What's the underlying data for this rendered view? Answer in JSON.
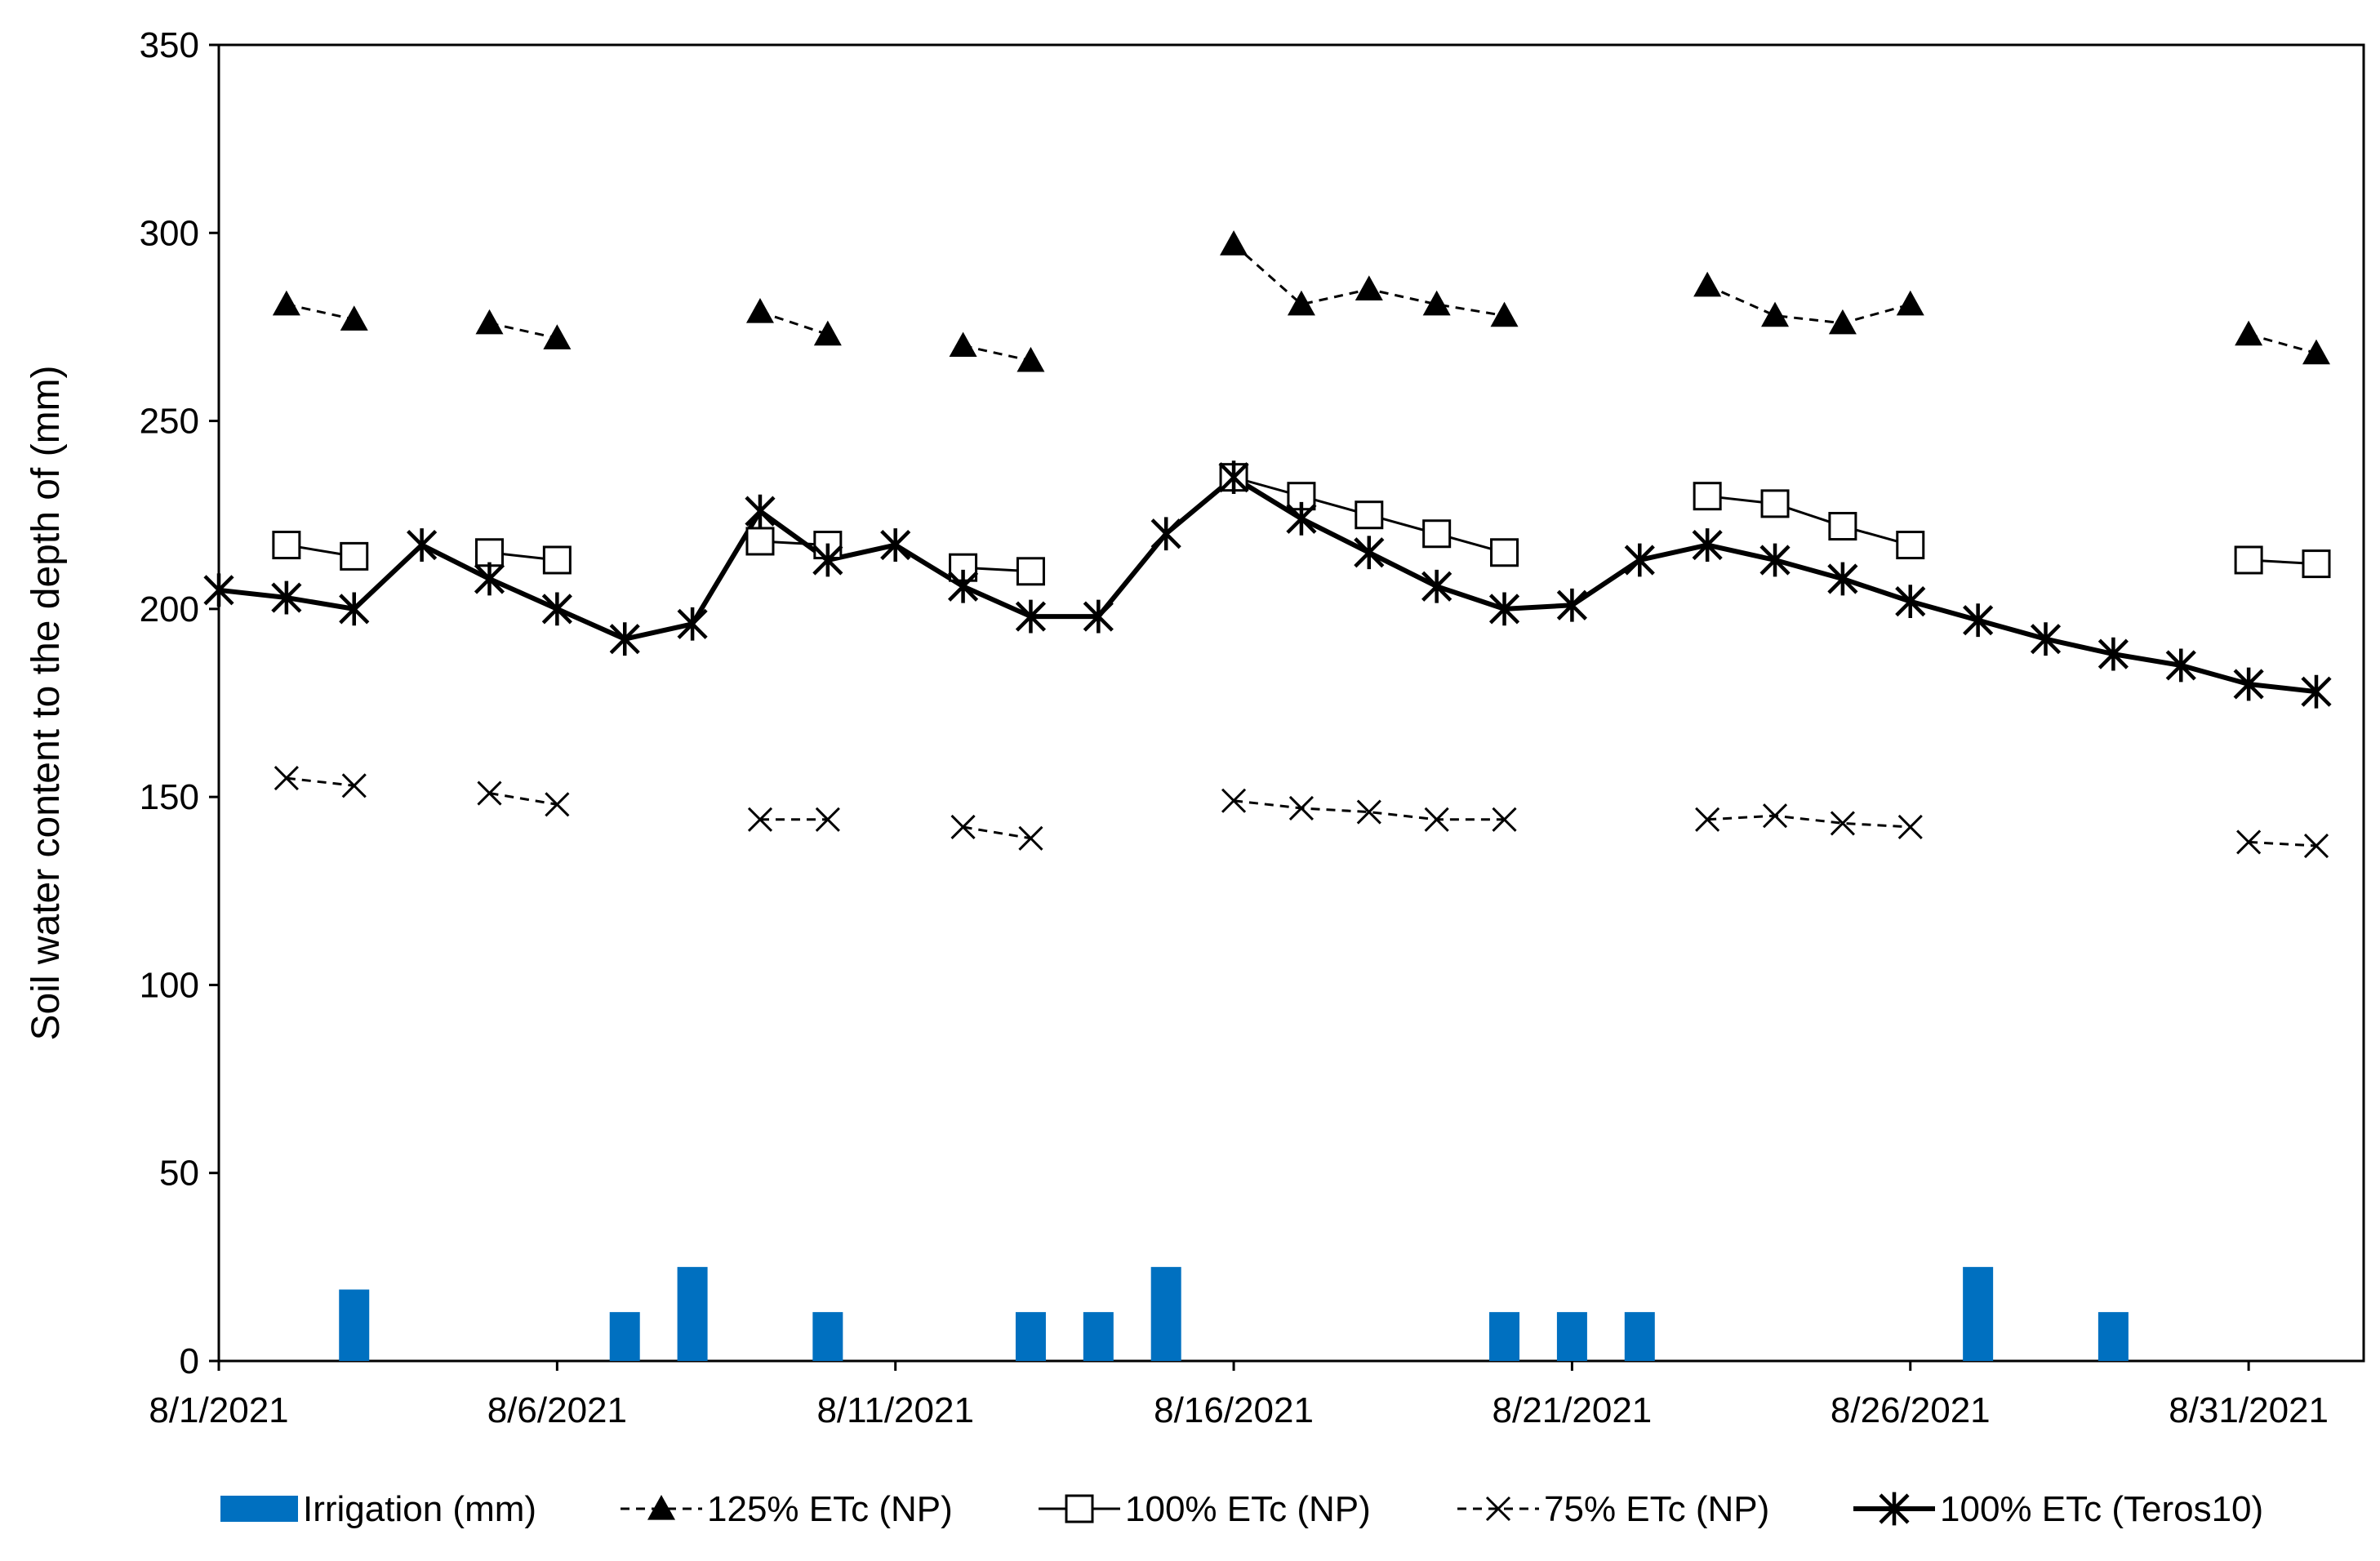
{
  "chart_data": {
    "type": "line",
    "title": "",
    "xlabel": "",
    "ylabel": "Soil water content to the depth of  (mm)",
    "ylim": [
      0,
      350
    ],
    "yticks": [
      0,
      50,
      100,
      150,
      200,
      250,
      300,
      350
    ],
    "xlim": [
      0,
      31.7
    ],
    "xticks": [
      {
        "day": 0,
        "label": "8/1/2021"
      },
      {
        "day": 5,
        "label": "8/6/2021"
      },
      {
        "day": 10,
        "label": "8/11/2021"
      },
      {
        "day": 15,
        "label": "8/16/2021"
      },
      {
        "day": 20,
        "label": "8/21/2021"
      },
      {
        "day": 25,
        "label": "8/26/2021"
      },
      {
        "day": 30,
        "label": "8/31/2021"
      }
    ],
    "grid": false,
    "legend_position": "bottom",
    "series": [
      {
        "name": "Irrigation (mm)",
        "kind": "bar",
        "color": "#0070C0",
        "points": [
          [
            2,
            19
          ],
          [
            6,
            13
          ],
          [
            7,
            25
          ],
          [
            9,
            13
          ],
          [
            12,
            13
          ],
          [
            13,
            13
          ],
          [
            14,
            25
          ],
          [
            19,
            13
          ],
          [
            20,
            13
          ],
          [
            21,
            13
          ],
          [
            26,
            25
          ],
          [
            28,
            13
          ]
        ]
      },
      {
        "name": "125% ETc (NP)",
        "kind": "line",
        "marker": "triangle",
        "dash": "dashed",
        "segments": [
          [
            [
              1,
              281
            ],
            [
              2,
              277
            ]
          ],
          [
            [
              4,
              276
            ],
            [
              5,
              272
            ]
          ],
          [
            [
              8,
              279
            ],
            [
              9,
              273
            ]
          ],
          [
            [
              11,
              270
            ],
            [
              12,
              266
            ]
          ],
          [
            [
              15,
              297
            ],
            [
              16,
              281
            ],
            [
              17,
              285
            ],
            [
              18,
              281
            ],
            [
              19,
              278
            ]
          ],
          [
            [
              22,
              286
            ],
            [
              23,
              278
            ],
            [
              24,
              276
            ],
            [
              25,
              281
            ]
          ],
          [
            [
              30,
              273
            ],
            [
              31,
              268
            ]
          ]
        ]
      },
      {
        "name": "100% ETc (NP)",
        "kind": "line",
        "marker": "square",
        "dash": "solid",
        "segments": [
          [
            [
              1,
              217
            ],
            [
              2,
              214
            ]
          ],
          [
            [
              4,
              215
            ],
            [
              5,
              213
            ]
          ],
          [
            [
              8,
              218
            ],
            [
              9,
              217
            ]
          ],
          [
            [
              11,
              211
            ],
            [
              12,
              210
            ]
          ],
          [
            [
              15,
              235
            ],
            [
              16,
              230
            ],
            [
              17,
              225
            ],
            [
              18,
              220
            ],
            [
              19,
              215
            ]
          ],
          [
            [
              22,
              230
            ],
            [
              23,
              228
            ],
            [
              24,
              222
            ],
            [
              25,
              217
            ]
          ],
          [
            [
              30,
              213
            ],
            [
              31,
              212
            ]
          ]
        ]
      },
      {
        "name": "75% ETc (NP)",
        "kind": "line",
        "marker": "x",
        "dash": "dashed",
        "segments": [
          [
            [
              1,
              155
            ],
            [
              2,
              153
            ]
          ],
          [
            [
              4,
              151
            ],
            [
              5,
              148
            ]
          ],
          [
            [
              8,
              144
            ],
            [
              9,
              144
            ]
          ],
          [
            [
              11,
              142
            ],
            [
              12,
              139
            ]
          ],
          [
            [
              15,
              149
            ],
            [
              16,
              147
            ],
            [
              17,
              146
            ],
            [
              18,
              144
            ],
            [
              19,
              144
            ]
          ],
          [
            [
              22,
              144
            ],
            [
              23,
              145
            ],
            [
              24,
              143
            ],
            [
              25,
              142
            ]
          ],
          [
            [
              30,
              138
            ],
            [
              31,
              137
            ]
          ]
        ]
      },
      {
        "name": "100% ETc (Teros10)",
        "kind": "line",
        "marker": "asterisk",
        "dash": "solid-bold",
        "segments": [
          [
            [
              0,
              205
            ],
            [
              1,
              203
            ],
            [
              2,
              200
            ],
            [
              3,
              217
            ],
            [
              4,
              208
            ],
            [
              5,
              200
            ],
            [
              6,
              192
            ],
            [
              7,
              196
            ],
            [
              8,
              226
            ],
            [
              9,
              213
            ],
            [
              10,
              217
            ],
            [
              11,
              206
            ],
            [
              12,
              198
            ],
            [
              13,
              198
            ],
            [
              14,
              220
            ],
            [
              15,
              235
            ],
            [
              16,
              224
            ],
            [
              17,
              215
            ],
            [
              18,
              206
            ],
            [
              19,
              200
            ],
            [
              20,
              201
            ],
            [
              21,
              213
            ],
            [
              22,
              217
            ],
            [
              23,
              213
            ],
            [
              24,
              208
            ],
            [
              25,
              202
            ],
            [
              26,
              197
            ],
            [
              27,
              192
            ],
            [
              28,
              188
            ],
            [
              29,
              185
            ],
            [
              30,
              180
            ],
            [
              31,
              178
            ]
          ]
        ]
      }
    ]
  }
}
